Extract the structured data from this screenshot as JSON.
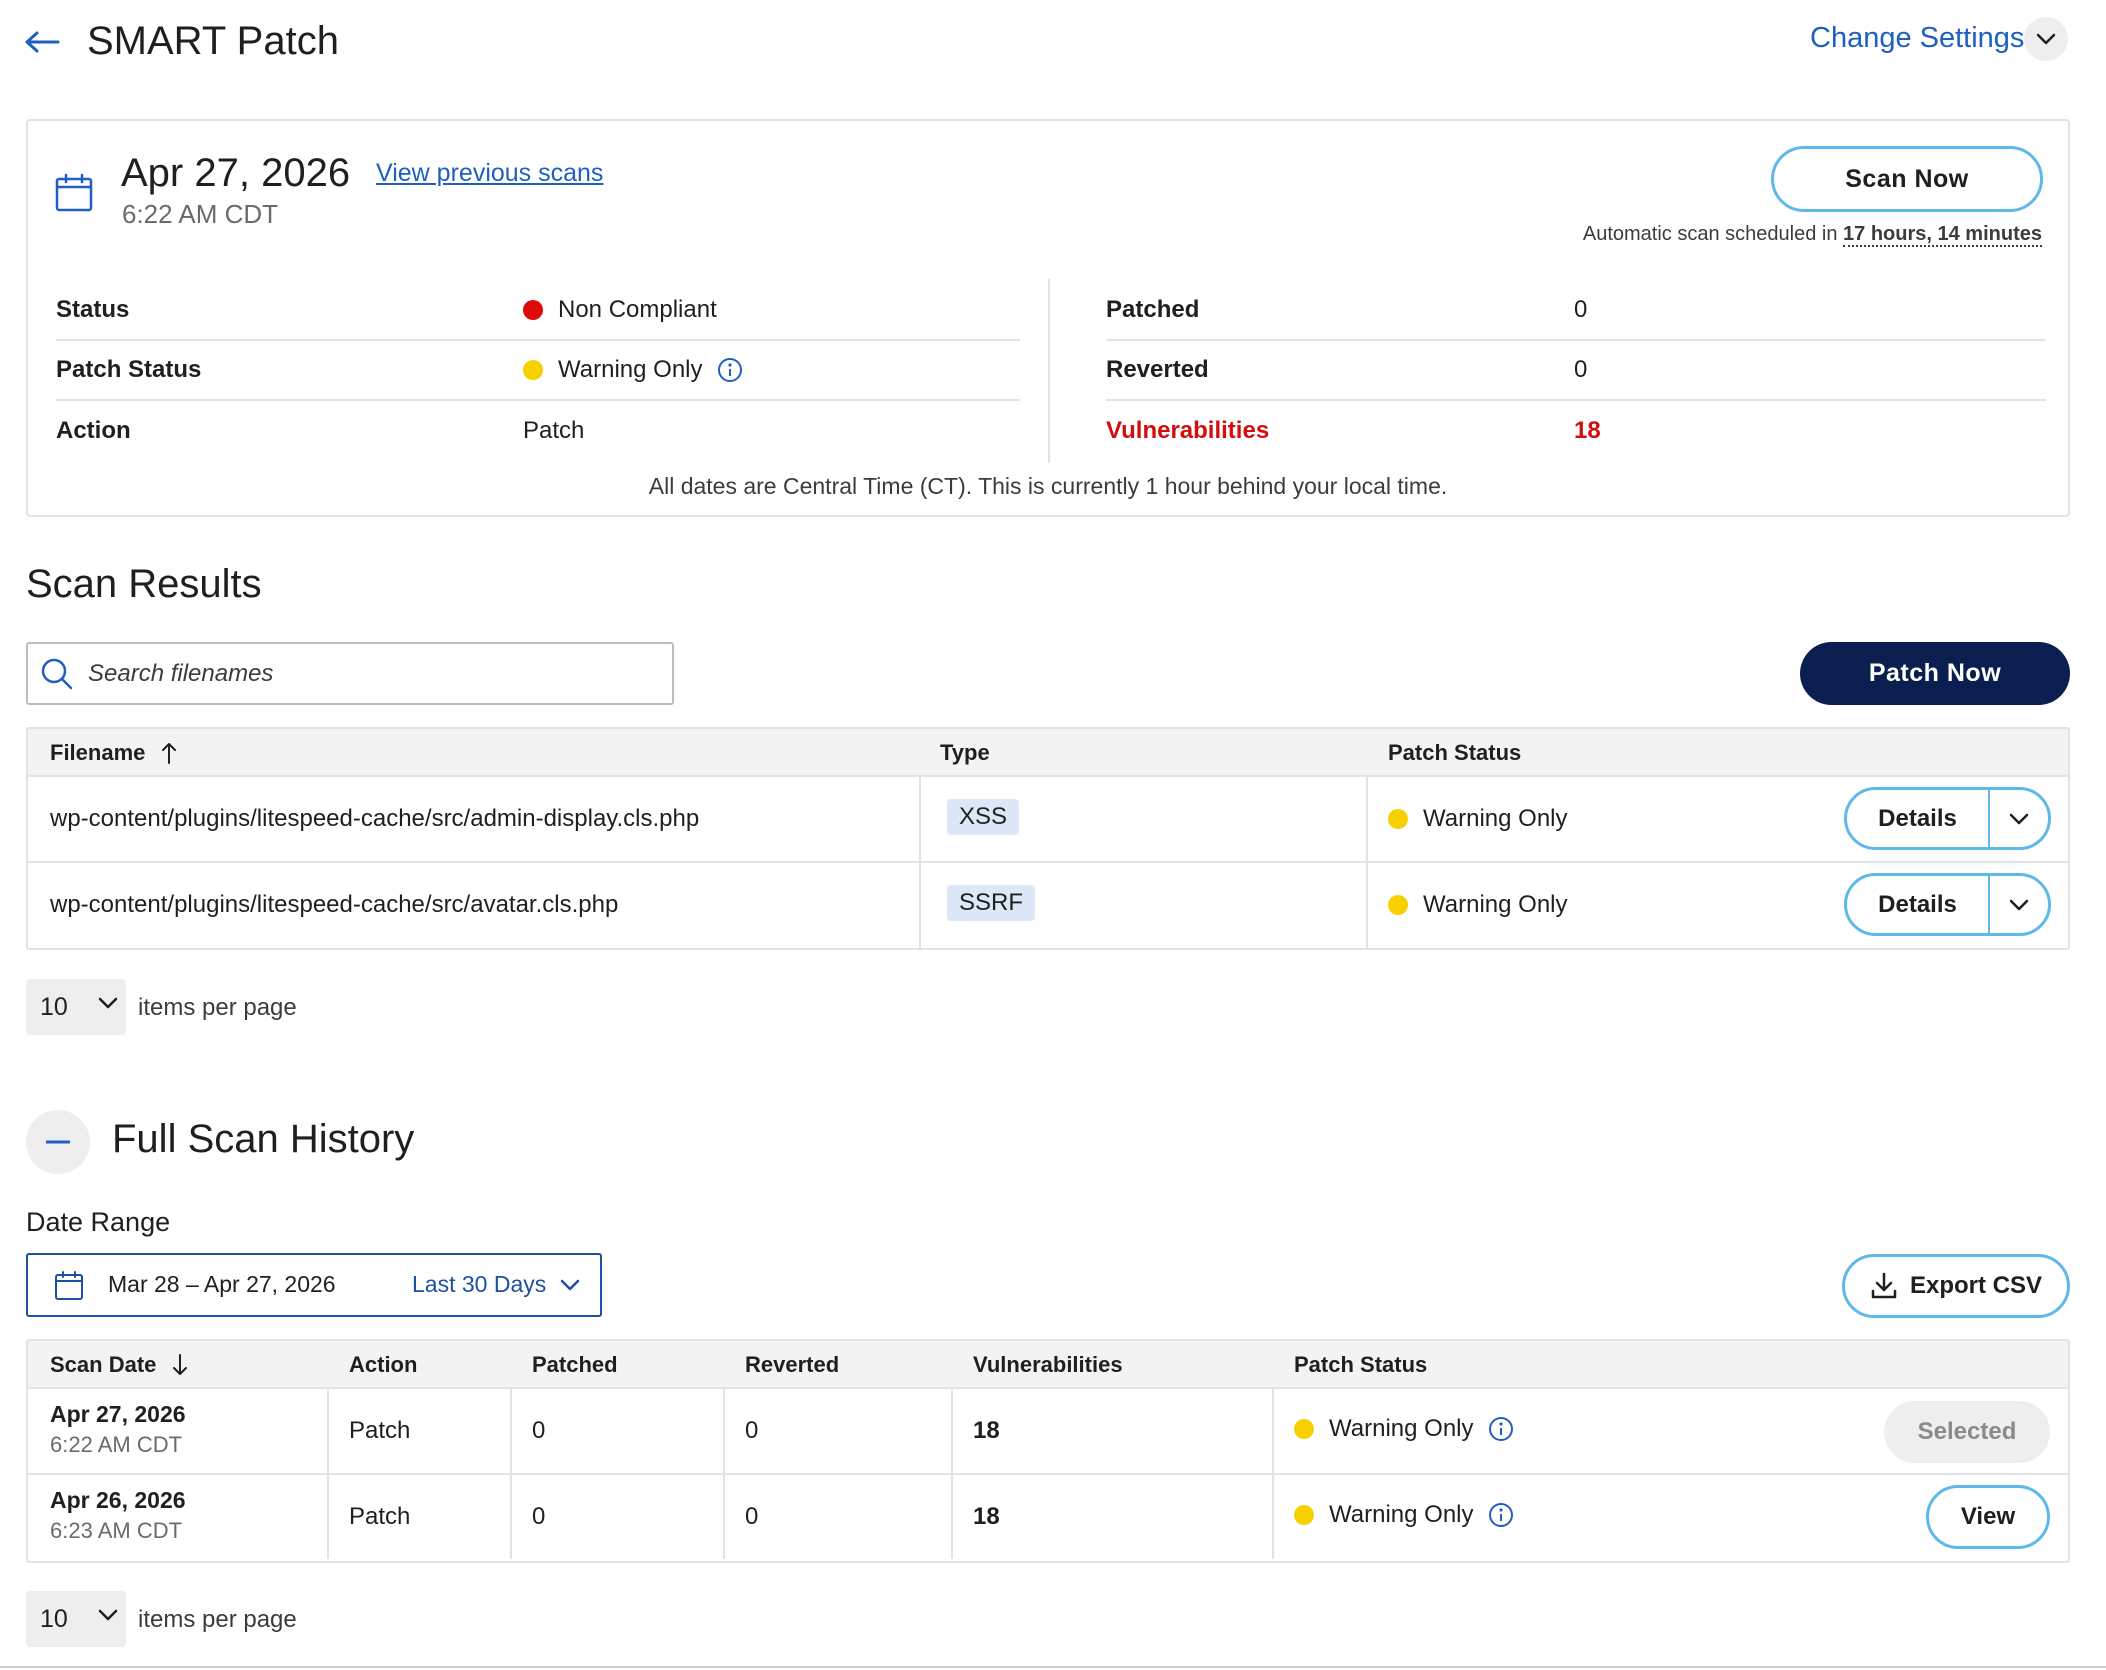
{
  "header": {
    "title": "SMART Patch",
    "change_settings": "Change Settings"
  },
  "summary": {
    "date": "Apr 27, 2026",
    "time": "6:22 AM CDT",
    "view_previous": "View previous scans",
    "scan_now": "Scan Now",
    "auto_scan_prefix": "Automatic scan scheduled in ",
    "auto_scan_duration": "17 hours, 14 minutes",
    "left_rows": [
      {
        "label": "Status",
        "value": "Non Compliant",
        "dot": "#e00a0a"
      },
      {
        "label": "Patch Status",
        "value": "Warning Only",
        "dot": "#f7d000"
      },
      {
        "label": "Action",
        "value": "Patch"
      }
    ],
    "right_rows": [
      {
        "label": "Patched",
        "value": "0"
      },
      {
        "label": "Reverted",
        "value": "0"
      },
      {
        "label": "Vulnerabilities",
        "value": "18",
        "color": "#d40c0c"
      }
    ],
    "timezone_note": "All dates are Central Time (CT). This is currently 1 hour behind your local time."
  },
  "scan_results": {
    "title": "Scan Results",
    "search_placeholder": "Search filenames",
    "patch_now": "Patch Now",
    "columns": [
      "Filename",
      "Type",
      "Patch Status"
    ],
    "rows": [
      {
        "filename": "wp-content/plugins/litespeed-cache/src/admin-display.cls.php",
        "type": "XSS",
        "status": "Warning Only",
        "action": "Details"
      },
      {
        "filename": "wp-content/plugins/litespeed-cache/src/avatar.cls.php",
        "type": "SSRF",
        "status": "Warning Only",
        "action": "Details"
      }
    ],
    "per_page": "10",
    "per_page_label": "items per page"
  },
  "history": {
    "title": "Full Scan History",
    "date_range_label": "Date Range",
    "date_range": "Mar 28 – Apr 27, 2026",
    "preset": "Last 30 Days",
    "export": "Export CSV",
    "columns": [
      "Scan Date",
      "Action",
      "Patched",
      "Reverted",
      "Vulnerabilities",
      "Patch Status"
    ],
    "rows": [
      {
        "date": "Apr 27, 2026",
        "time": "6:22 AM CDT",
        "action": "Patch",
        "patched": "0",
        "reverted": "0",
        "vulns": "18",
        "status": "Warning Only",
        "button": "Selected"
      },
      {
        "date": "Apr 26, 2026",
        "time": "6:23 AM CDT",
        "action": "Patch",
        "patched": "0",
        "reverted": "0",
        "vulns": "18",
        "status": "Warning Only",
        "button": "View"
      }
    ],
    "per_page": "10",
    "per_page_label": "items per page"
  },
  "colors": {
    "accent": "#5fb8e8",
    "link": "#1f5fbf",
    "primary_button": "#0a1e4f",
    "error": "#d40c0c",
    "warning": "#f7d000"
  },
  "icons": [
    "back-arrow-icon",
    "chevron-down-icon",
    "calendar-icon",
    "info-icon",
    "search-icon",
    "sort-ascending-icon",
    "sort-descending-icon",
    "minus-icon",
    "download-icon"
  ]
}
